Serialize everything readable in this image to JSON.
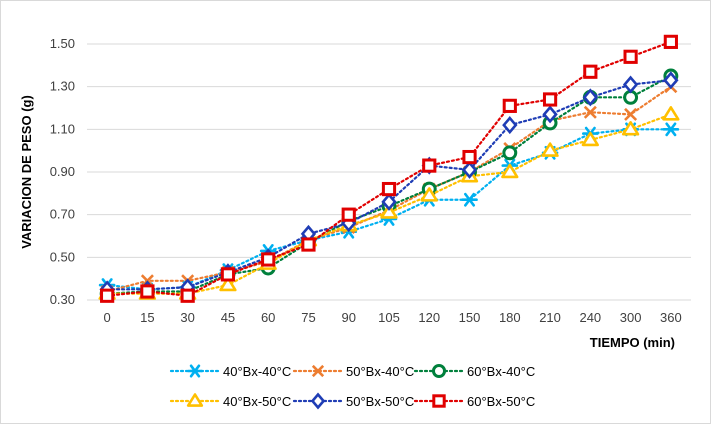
{
  "chart_data": {
    "type": "line",
    "title": "",
    "xlabel": "TIEMPO (min)",
    "ylabel": "VARIACION DE PESO (g)",
    "categories": [
      "0",
      "15",
      "30",
      "45",
      "60",
      "75",
      "90",
      "105",
      "120",
      "150",
      "180",
      "210",
      "240",
      "300",
      "360"
    ],
    "ylim": [
      0.3,
      1.5
    ],
    "yticks": [
      "0.30",
      "0.50",
      "0.70",
      "0.90",
      "1.10",
      "1.30",
      "1.50"
    ],
    "grid": true,
    "legend_position": "bottom",
    "series": [
      {
        "name": "40°Bx-40°C",
        "color": "#00B0F0",
        "marker": "asterisk",
        "values": [
          0.37,
          0.35,
          0.36,
          0.44,
          0.53,
          0.58,
          0.62,
          0.68,
          0.77,
          0.77,
          0.93,
          0.99,
          1.08,
          1.1,
          1.1
        ]
      },
      {
        "name": "50°Bx-40°C",
        "color": "#ED7D31",
        "marker": "x",
        "values": [
          0.34,
          0.39,
          0.39,
          0.43,
          0.48,
          0.58,
          0.64,
          0.72,
          0.82,
          0.9,
          1.01,
          1.14,
          1.18,
          1.17,
          1.3
        ]
      },
      {
        "name": "60°Bx-40°C",
        "color": "#00803C",
        "marker": "circle",
        "values": [
          0.33,
          0.34,
          0.34,
          0.42,
          0.45,
          0.57,
          0.67,
          0.74,
          0.82,
          0.9,
          0.99,
          1.13,
          1.25,
          1.25,
          1.35
        ]
      },
      {
        "name": "40°Bx-50°C",
        "color": "#FFC000",
        "marker": "triangle",
        "values": [
          0.33,
          0.33,
          0.33,
          0.37,
          0.47,
          0.58,
          0.65,
          0.71,
          0.79,
          0.88,
          0.9,
          1.0,
          1.05,
          1.1,
          1.17
        ]
      },
      {
        "name": "50°Bx-50°C",
        "color": "#1F3DB5",
        "marker": "diamond",
        "values": [
          0.35,
          0.35,
          0.36,
          0.43,
          0.5,
          0.61,
          0.66,
          0.76,
          0.93,
          0.91,
          1.12,
          1.17,
          1.25,
          1.31,
          1.33
        ]
      },
      {
        "name": "60°Bx-50°C",
        "color": "#E00000",
        "marker": "square",
        "values": [
          0.32,
          0.34,
          0.32,
          0.42,
          0.49,
          0.56,
          0.7,
          0.82,
          0.93,
          0.97,
          1.21,
          1.24,
          1.37,
          1.44,
          1.51
        ]
      }
    ]
  }
}
